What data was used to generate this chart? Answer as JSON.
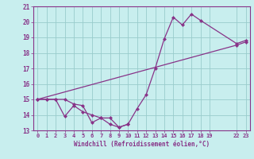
{
  "xlabel": "Windchill (Refroidissement éolien,°C)",
  "ylabel": "",
  "bg_color": "#c8eeee",
  "line_color": "#883388",
  "grid_color": "#99cccc",
  "line1_x": [
    0,
    1,
    2,
    3,
    4,
    5,
    6,
    7,
    8,
    9,
    10,
    11,
    12,
    13,
    14,
    15,
    16,
    17,
    18,
    22,
    23
  ],
  "line1_y": [
    15.0,
    15.0,
    15.0,
    15.0,
    14.7,
    14.6,
    13.5,
    13.8,
    13.8,
    13.2,
    13.4,
    14.4,
    15.3,
    17.0,
    18.9,
    20.3,
    19.8,
    20.5,
    20.1,
    18.6,
    18.8
  ],
  "line2_x": [
    0,
    1,
    2,
    3,
    4,
    5,
    6,
    7,
    8,
    9,
    10
  ],
  "line2_y": [
    15.0,
    15.0,
    15.0,
    13.9,
    14.6,
    14.2,
    14.0,
    13.8,
    13.4,
    13.2,
    13.4
  ],
  "line3_x": [
    0,
    22,
    23
  ],
  "line3_y": [
    15.0,
    18.5,
    18.7
  ],
  "ylim": [
    13,
    21
  ],
  "xlim": [
    -0.5,
    23.5
  ],
  "yticks": [
    13,
    14,
    15,
    16,
    17,
    18,
    19,
    20,
    21
  ],
  "xtick_pos": [
    0,
    1,
    2,
    3,
    4,
    5,
    6,
    7,
    8,
    9,
    10,
    11,
    12,
    13,
    14,
    15,
    16,
    17,
    18,
    19,
    22,
    23
  ],
  "xtick_labels": [
    "0",
    "1",
    "2",
    "3",
    "4",
    "5",
    "6",
    "7",
    "8",
    "9",
    "10",
    "11",
    "12",
    "13",
    "14",
    "15",
    "16",
    "17",
    "18",
    "19",
    "22",
    "23"
  ]
}
